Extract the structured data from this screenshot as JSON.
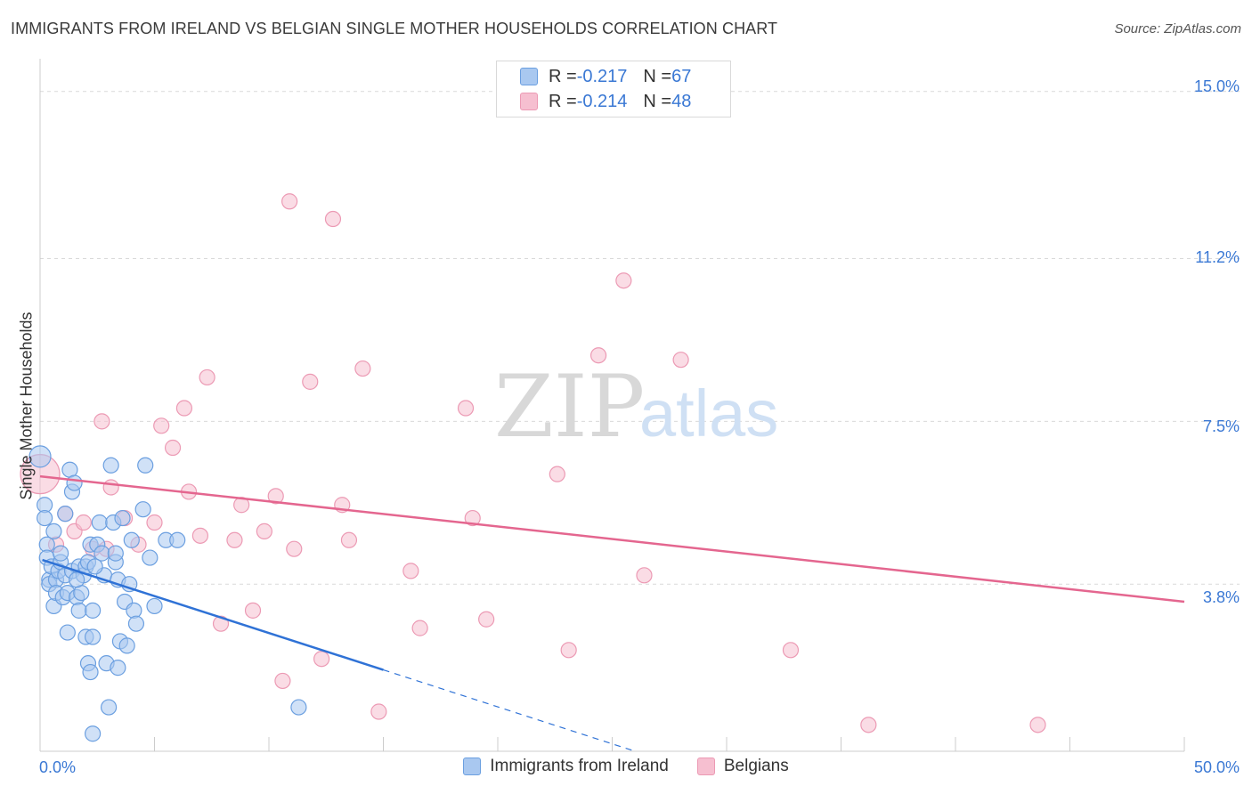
{
  "title": "IMMIGRANTS FROM IRELAND VS BELGIAN SINGLE MOTHER HOUSEHOLDS CORRELATION CHART",
  "source": "Source: ZipAtlas.com",
  "watermark": {
    "zip": "ZIP",
    "atlas": "atlas"
  },
  "colors": {
    "blue_fill": "#a9c8f0",
    "blue_stroke": "#6b9fe0",
    "blue_line": "#2f72d6",
    "pink_fill": "#f6bfd0",
    "pink_stroke": "#ec9ab4",
    "pink_line": "#e4668f",
    "accent_text": "#3a78d4",
    "grid": "#d9d9d9"
  },
  "legend": {
    "rows": [
      {
        "r_label": "R = ",
        "r_value": "-0.217",
        "n_label": "N = ",
        "n_value": "67"
      },
      {
        "r_label": "R = ",
        "r_value": "-0.214",
        "n_label": "N = ",
        "n_value": "48"
      }
    ]
  },
  "bottom_legend": {
    "series1": "Immigrants from Ireland",
    "series2": "Belgians"
  },
  "chart_data": {
    "type": "scatter",
    "title": "IMMIGRANTS FROM IRELAND VS BELGIAN SINGLE MOTHER HOUSEHOLDS CORRELATION CHART",
    "xlabel": "",
    "ylabel": "Single Mother Households",
    "xlim": [
      0,
      50
    ],
    "ylim": [
      0,
      15.5
    ],
    "x_tick_labels": [
      "0.0%",
      "50.0%"
    ],
    "y_tick_values": [
      3.8,
      7.5,
      11.2,
      15.0
    ],
    "y_tick_labels": [
      "3.8%",
      "7.5%",
      "11.2%",
      "15.0%"
    ],
    "grid": true,
    "legend_position": "top-center",
    "series": [
      {
        "name": "Immigrants from Ireland",
        "R": -0.217,
        "N": 67,
        "trend": {
          "x0": 0.1,
          "y0": 4.35,
          "x1": 15.0,
          "y1": 1.85,
          "dash_x1": 26.0,
          "dash_y1": 0.0
        },
        "points": [
          [
            0.0,
            6.7
          ],
          [
            0.2,
            5.6
          ],
          [
            0.2,
            5.3
          ],
          [
            0.3,
            4.7
          ],
          [
            0.3,
            4.4
          ],
          [
            0.4,
            3.9
          ],
          [
            0.4,
            3.8
          ],
          [
            0.5,
            4.2
          ],
          [
            0.6,
            5.0
          ],
          [
            0.6,
            3.3
          ],
          [
            0.7,
            3.9
          ],
          [
            0.7,
            3.6
          ],
          [
            0.8,
            4.1
          ],
          [
            0.9,
            4.3
          ],
          [
            0.9,
            4.5
          ],
          [
            1.0,
            3.5
          ],
          [
            1.1,
            5.4
          ],
          [
            1.1,
            4.0
          ],
          [
            1.2,
            2.7
          ],
          [
            1.2,
            3.6
          ],
          [
            1.3,
            6.4
          ],
          [
            1.4,
            4.1
          ],
          [
            1.4,
            5.9
          ],
          [
            1.5,
            6.1
          ],
          [
            1.6,
            3.5
          ],
          [
            1.7,
            4.2
          ],
          [
            1.7,
            3.2
          ],
          [
            1.8,
            3.6
          ],
          [
            1.9,
            4.0
          ],
          [
            2.0,
            4.2
          ],
          [
            2.0,
            2.6
          ],
          [
            2.1,
            4.3
          ],
          [
            2.1,
            2.0
          ],
          [
            2.2,
            4.7
          ],
          [
            2.2,
            1.8
          ],
          [
            2.3,
            2.6
          ],
          [
            2.3,
            3.2
          ],
          [
            2.5,
            4.7
          ],
          [
            2.6,
            5.2
          ],
          [
            2.7,
            4.5
          ],
          [
            2.8,
            4.0
          ],
          [
            2.9,
            2.0
          ],
          [
            3.0,
            1.0
          ],
          [
            3.1,
            6.5
          ],
          [
            3.2,
            5.2
          ],
          [
            3.3,
            4.3
          ],
          [
            3.3,
            4.5
          ],
          [
            3.4,
            3.9
          ],
          [
            3.4,
            1.9
          ],
          [
            3.5,
            2.5
          ],
          [
            3.6,
            5.3
          ],
          [
            3.7,
            3.4
          ],
          [
            3.8,
            2.4
          ],
          [
            3.9,
            3.8
          ],
          [
            4.0,
            4.8
          ],
          [
            4.1,
            3.2
          ],
          [
            4.2,
            2.9
          ],
          [
            4.5,
            5.5
          ],
          [
            4.6,
            6.5
          ],
          [
            4.8,
            4.4
          ],
          [
            5.0,
            3.3
          ],
          [
            5.5,
            4.8
          ],
          [
            6.0,
            4.8
          ],
          [
            11.3,
            1.0
          ],
          [
            2.3,
            0.4
          ],
          [
            1.6,
            3.9
          ],
          [
            2.4,
            4.2
          ]
        ]
      },
      {
        "name": "Belgians",
        "R": -0.214,
        "N": 48,
        "trend": {
          "x0": 0.0,
          "y0": 6.25,
          "x1": 50.0,
          "y1": 3.4
        },
        "points": [
          [
            0.0,
            6.3
          ],
          [
            0.7,
            4.7
          ],
          [
            1.1,
            5.4
          ],
          [
            1.5,
            5.0
          ],
          [
            1.9,
            5.2
          ],
          [
            2.3,
            4.6
          ],
          [
            2.7,
            7.5
          ],
          [
            3.1,
            6.0
          ],
          [
            3.7,
            5.3
          ],
          [
            4.3,
            4.7
          ],
          [
            5.0,
            5.2
          ],
          [
            5.3,
            7.4
          ],
          [
            5.8,
            6.9
          ],
          [
            6.3,
            7.8
          ],
          [
            6.5,
            5.9
          ],
          [
            7.0,
            4.9
          ],
          [
            7.3,
            8.5
          ],
          [
            7.9,
            2.9
          ],
          [
            8.5,
            4.8
          ],
          [
            8.8,
            5.6
          ],
          [
            9.3,
            3.2
          ],
          [
            9.8,
            5.0
          ],
          [
            10.3,
            5.8
          ],
          [
            10.6,
            1.6
          ],
          [
            10.9,
            12.5
          ],
          [
            11.1,
            4.6
          ],
          [
            11.8,
            8.4
          ],
          [
            12.3,
            2.1
          ],
          [
            12.8,
            12.1
          ],
          [
            13.2,
            5.6
          ],
          [
            13.5,
            4.8
          ],
          [
            14.1,
            8.7
          ],
          [
            14.8,
            0.9
          ],
          [
            16.2,
            4.1
          ],
          [
            16.6,
            2.8
          ],
          [
            18.6,
            7.8
          ],
          [
            18.9,
            5.3
          ],
          [
            19.5,
            3.0
          ],
          [
            22.6,
            6.3
          ],
          [
            23.1,
            2.3
          ],
          [
            24.4,
            9.0
          ],
          [
            25.5,
            10.7
          ],
          [
            26.4,
            4.0
          ],
          [
            28.0,
            8.9
          ],
          [
            32.8,
            2.3
          ],
          [
            36.2,
            0.6
          ],
          [
            43.6,
            0.6
          ],
          [
            2.9,
            4.6
          ]
        ]
      }
    ]
  }
}
